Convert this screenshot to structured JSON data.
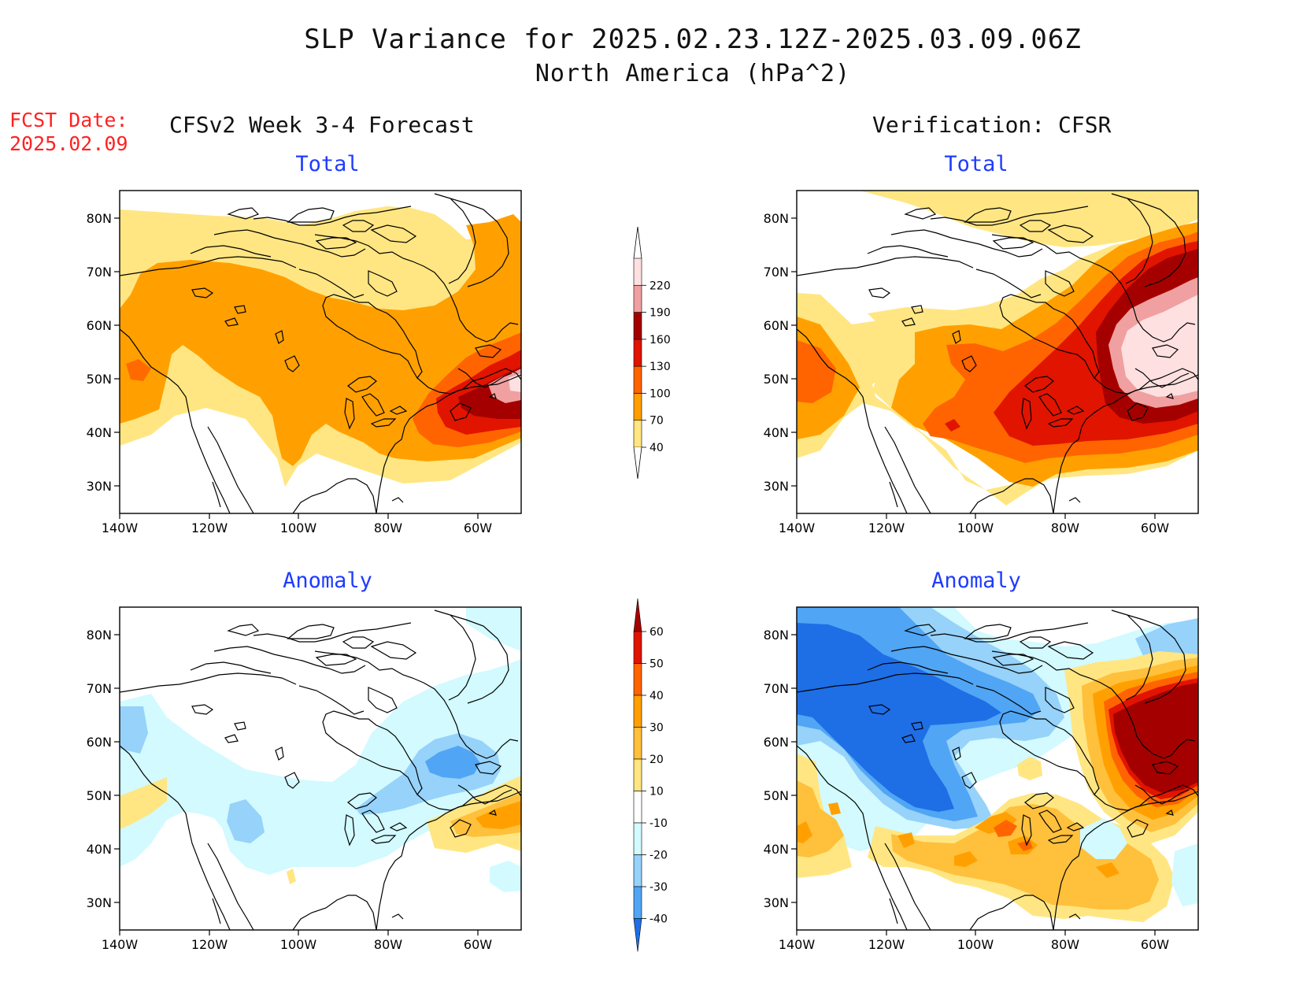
{
  "title": {
    "line1": "SLP Variance for 2025.02.23.12Z-2025.03.09.06Z",
    "line2": "North America (hPa^2)"
  },
  "fcst_date": {
    "label": "FCST Date:",
    "value": "2025.02.09"
  },
  "headers": {
    "left": "CFSv2 Week 3-4 Forecast",
    "right": "Verification: CFSR"
  },
  "panel_titles": {
    "total": "Total",
    "anomaly": "Anomaly"
  },
  "axes": {
    "lat_labels": [
      "80N",
      "70N",
      "60N",
      "50N",
      "40N",
      "30N"
    ],
    "lon_labels": [
      "140W",
      "120W",
      "100W",
      "80W",
      "60W"
    ]
  },
  "colorbar_total": {
    "levels": [
      "40",
      "70",
      "100",
      "130",
      "160",
      "190",
      "220"
    ],
    "colors": [
      "#ffe682",
      "#ffa000",
      "#ff6400",
      "#e11400",
      "#a50000",
      "#f0a0a0",
      "#ffe0e0"
    ]
  },
  "colorbar_anomaly": {
    "levels": [
      "60",
      "50",
      "40",
      "30",
      "20",
      "10",
      "-10",
      "-20",
      "-30",
      "-40"
    ],
    "colors": [
      "#a50000",
      "#e11400",
      "#ff6400",
      "#ffa000",
      "#ffc03c",
      "#ffe682",
      "#ffffff",
      "#d2faff",
      "#96d2fa",
      "#50a5f5",
      "#1e6ee6"
    ]
  }
}
